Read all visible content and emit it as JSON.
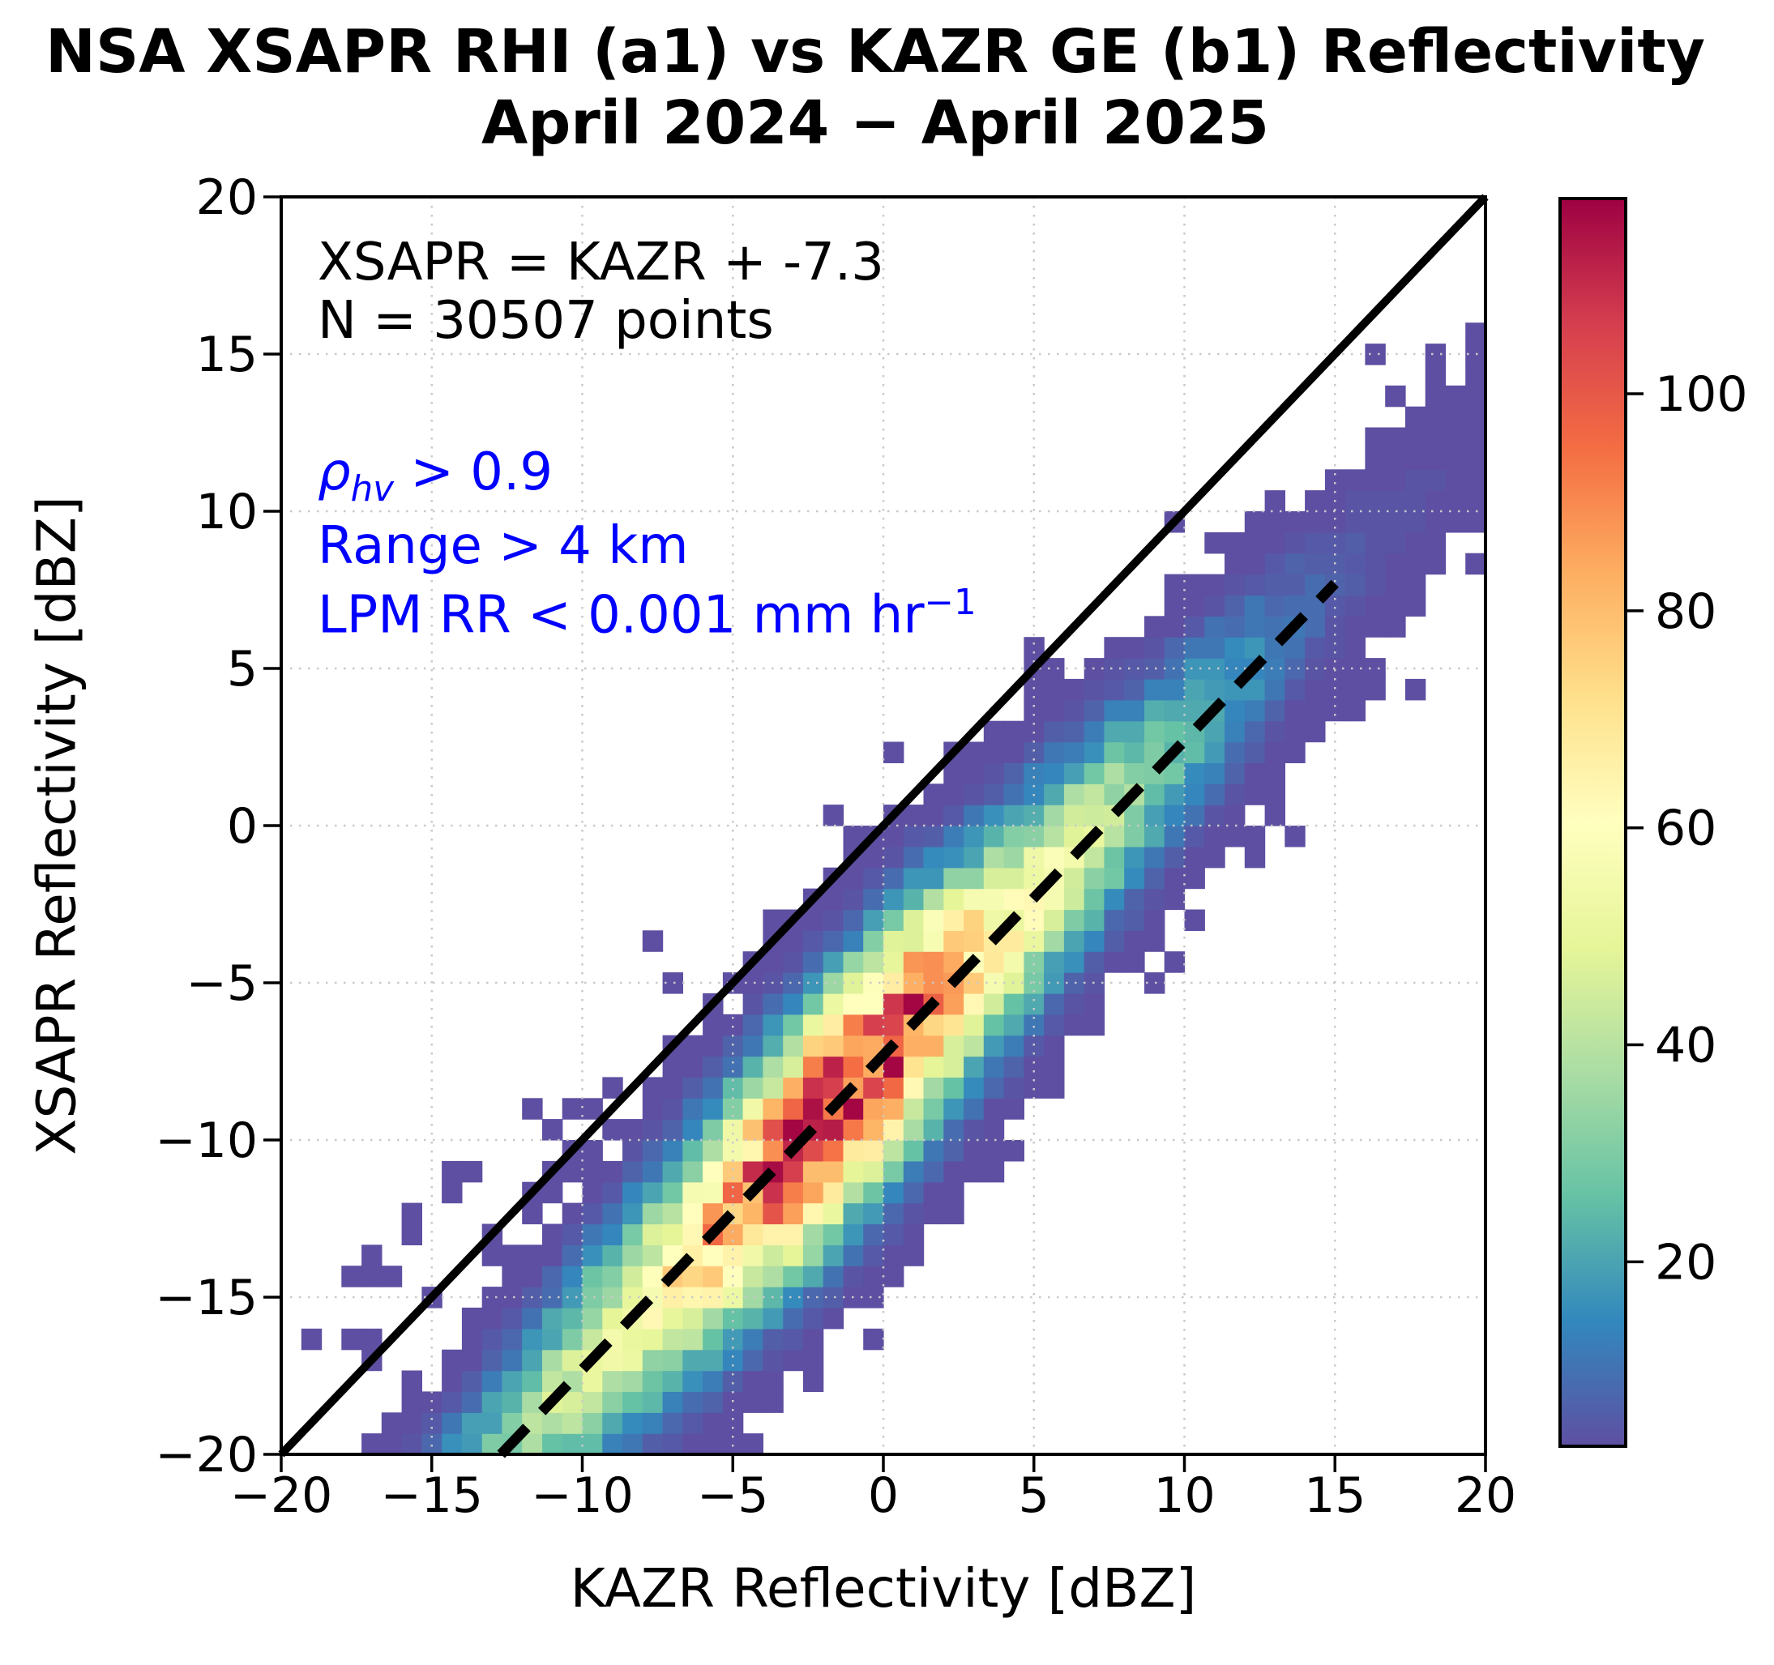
{
  "figure": {
    "title_line1": "NSA XSAPR RHI (a1) vs KAZR GE (b1) Reflectivity",
    "title_line2": "April 2024 − April 2025",
    "background": "#ffffff"
  },
  "axes": {
    "x_label": "KAZR Reflectivity [dBZ]",
    "y_label": "XSAPR Reflectivity [dBZ]",
    "x_lim": [
      -20,
      20
    ],
    "y_lim": [
      -20,
      20
    ],
    "x_tick_values": [
      -20,
      -15,
      -10,
      -5,
      0,
      5,
      10,
      15,
      20
    ],
    "x_tick_labels": [
      "−20",
      "−15",
      "−10",
      "−5",
      "0",
      "5",
      "10",
      "15",
      "20"
    ],
    "y_tick_values": [
      -20,
      -15,
      -10,
      -5,
      0,
      5,
      10,
      15,
      20
    ],
    "y_tick_labels": [
      "−20",
      "−15",
      "−10",
      "−5",
      "0",
      "5",
      "10",
      "15",
      "20"
    ],
    "grid": true,
    "grid_color": "#c9c9c9"
  },
  "annotations": {
    "fit_equation": "XSAPR = KAZR + -7.3",
    "point_count": "N = 30507 points",
    "filters_color": "#0000ff",
    "rho_symbol": "ρ",
    "rho_subscript": "hv",
    "rho_rest": " > 0.9",
    "range_filter": "Range > 4 km",
    "lpm_main": "LPM RR < 0.001 mm hr",
    "lpm_superscript": "−1"
  },
  "colorbar": {
    "tick_values": [
      20,
      40,
      60,
      80,
      100
    ],
    "tick_labels": [
      "20",
      "40",
      "60",
      "80",
      "100"
    ],
    "vmin": 3,
    "vmax": 118
  },
  "chart_data": {
    "type": "heatmap",
    "title": "NSA XSAPR RHI (a1) vs KAZR GE (b1) Reflectivity",
    "subtitle": "April 2024 − April 2025",
    "xlabel": "KAZR Reflectivity [dBZ]",
    "ylabel": "XSAPR Reflectivity [dBZ]",
    "xlim": [
      -20,
      20
    ],
    "ylim": [
      -20,
      20
    ],
    "n_bins": 60,
    "n_points": 30507,
    "fit": {
      "slope": 1,
      "intercept": -7.3,
      "label": "XSAPR = KAZR + -7.3",
      "line_x_range": [
        -12.7,
        15
      ],
      "style": "dashed",
      "color": "#000000"
    },
    "identity_line": {
      "from": [
        -20,
        -20
      ],
      "to": [
        20,
        20
      ],
      "style": "solid",
      "color": "#000000"
    },
    "colormap_name": "Spectral_r",
    "colormap_stops": [
      "#5e4fa2",
      "#3288bd",
      "#66c2a5",
      "#abdda4",
      "#e6f598",
      "#ffffbf",
      "#fee08b",
      "#fdae61",
      "#f46d43",
      "#d53e4f",
      "#9e0142"
    ],
    "count_range": [
      3,
      118
    ],
    "colorbar_ticks": [
      20,
      40,
      60,
      80,
      100
    ],
    "density_model": {
      "seed": 11,
      "ridge_offset": -7.3,
      "amplitude_anchors": [
        [
          -20,
          7
        ],
        [
          -17,
          12
        ],
        [
          -14,
          25
        ],
        [
          -11,
          40
        ],
        [
          -9,
          52
        ],
        [
          -7,
          66
        ],
        [
          -5,
          88
        ],
        [
          -3.5,
          101
        ],
        [
          -2,
          116
        ],
        [
          -0.5,
          104
        ],
        [
          0.7,
          108
        ],
        [
          2,
          84
        ],
        [
          3.5,
          66
        ],
        [
          5,
          56
        ],
        [
          7,
          44
        ],
        [
          9,
          30
        ],
        [
          11,
          21
        ],
        [
          13,
          12
        ],
        [
          15,
          6.5
        ],
        [
          17,
          4
        ],
        [
          20,
          3
        ]
      ],
      "sigma_anchors": [
        [
          -20,
          1.65
        ],
        [
          -14,
          1.95
        ],
        [
          -8,
          2.25
        ],
        [
          -2,
          2.45
        ],
        [
          3,
          2.3
        ],
        [
          9,
          2.0
        ],
        [
          15,
          1.8
        ],
        [
          20,
          1.7
        ]
      ],
      "noise_base": 0.78,
      "noise_span": 0.44,
      "upper_wedge": {
        "min_sigmas": 2.2,
        "max_above_identity": 4,
        "p_left": 0.16,
        "p_right": 0.07,
        "left_boundary_x": -4,
        "above_identity_only_below_x": -7
      },
      "lower_wedge": {
        "min_sigmas": 2.2,
        "max_depth": 7,
        "p": 0.1
      }
    }
  }
}
